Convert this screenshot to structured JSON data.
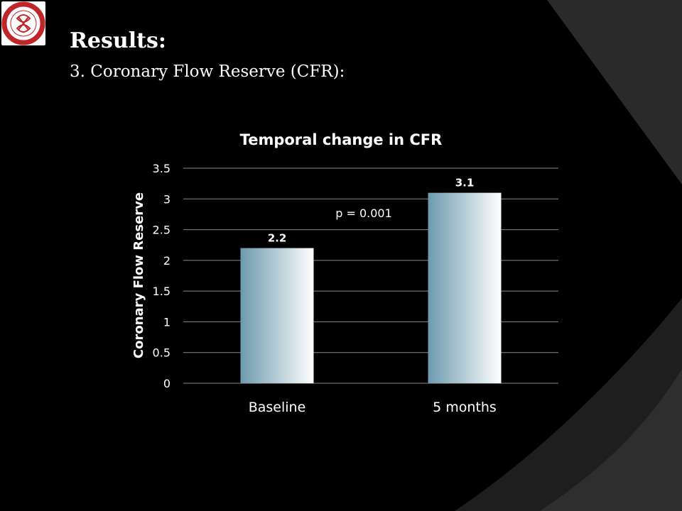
{
  "slide": {
    "title": "Results:",
    "subtitle": "3. Coronary Flow Reserve (CFR):",
    "logo_text": "İSTANBUL ÜNİVERSİTESİ İSTANBUL TIP FAKÜLTESİ",
    "colors": {
      "background": "#000000",
      "accent_shape": "#1e1e1e",
      "logo_ring": "#c0252a"
    }
  },
  "chart_data": {
    "type": "bar",
    "title": "Temporal change in CFR",
    "ylabel": "Coronary Flow Reserve",
    "xlabel": "",
    "categories": [
      "Baseline",
      "5 months"
    ],
    "values": [
      2.2,
      3.1
    ],
    "data_labels": [
      "2.2",
      "3.1"
    ],
    "ylim": [
      0,
      3.5
    ],
    "yticks": [
      0,
      0.5,
      1,
      1.5,
      2,
      2.5,
      3,
      3.5
    ],
    "ytick_labels": [
      "0",
      "0.5",
      "1",
      "1.5",
      "2",
      "2.5",
      "3",
      "3.5"
    ],
    "grid": true,
    "legend": "none",
    "annotations": [
      {
        "text": "p = 0.001"
      }
    ],
    "bar_colors": {
      "left": "#6d9aae",
      "right": "#ffffff"
    }
  }
}
